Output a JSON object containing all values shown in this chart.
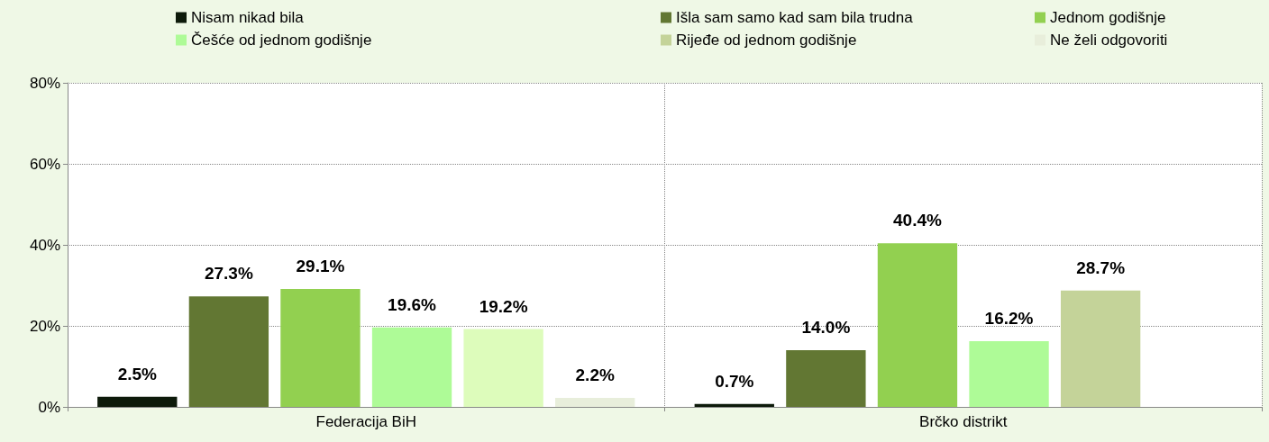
{
  "chart_data": {
    "type": "bar",
    "categories": [
      "Federacija BiH",
      "Brčko distrikt"
    ],
    "series": [
      {
        "name": "Nisam nikad bila",
        "color": "#0d1a0a",
        "values": [
          2.5,
          0.7
        ],
        "value_labels": [
          "2.5%",
          "0.7%"
        ]
      },
      {
        "name": "Išla sam samo kad sam bila trudna",
        "color": "#627733",
        "values": [
          27.3,
          14.0
        ],
        "value_labels": [
          "27.3%",
          "14.0%"
        ]
      },
      {
        "name": "Jednom godišnje",
        "color": "#92d050",
        "values": [
          29.1,
          40.4
        ],
        "value_labels": [
          "29.1%",
          "40.4%"
        ]
      },
      {
        "name": "Češće od jednom godišnje",
        "color": "#aefb97",
        "values": [
          19.6,
          16.2
        ],
        "value_labels": [
          "19.6%",
          "16.2%"
        ]
      },
      {
        "name": "Rijeđe od jednom godišnje",
        "color": "#c4d399",
        "colors": [
          "#ddfcbb",
          "#c4d399"
        ],
        "values": [
          19.2,
          28.7
        ],
        "value_labels": [
          "19.2%",
          "28.7%"
        ]
      },
      {
        "name": "Ne želi odgovoriti",
        "color": "#e8eedb",
        "values": [
          2.2,
          null
        ],
        "value_labels": [
          "2.2%",
          null
        ]
      }
    ],
    "ylim": [
      0,
      80
    ],
    "yticks": [
      {
        "value": 0,
        "label": "0%"
      },
      {
        "value": 20,
        "label": "20%"
      },
      {
        "value": 40,
        "label": "40%"
      },
      {
        "value": 60,
        "label": "60%"
      },
      {
        "value": 80,
        "label": "80%"
      }
    ],
    "grid": true,
    "legend": "top"
  }
}
